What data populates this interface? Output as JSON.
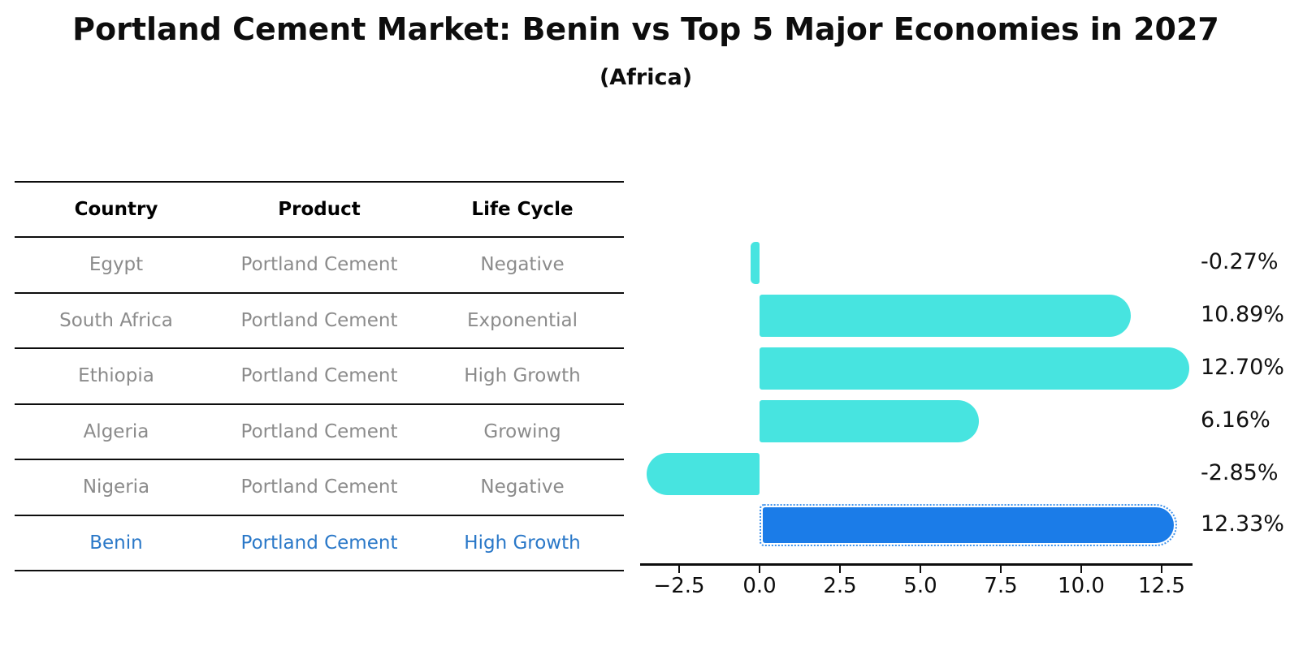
{
  "title": "Portland Cement Market: Benin vs Top 5 Major Economies in 2027",
  "subtitle": "(Africa)",
  "table": {
    "headers": [
      "Country",
      "Product",
      "Life Cycle"
    ],
    "rows": [
      {
        "country": "Egypt",
        "product": "Portland Cement",
        "life_cycle": "Negative",
        "highlight": false
      },
      {
        "country": "South Africa",
        "product": "Portland Cement",
        "life_cycle": "Exponential",
        "highlight": false
      },
      {
        "country": "Ethiopia",
        "product": "Portland Cement",
        "life_cycle": "High Growth",
        "highlight": false
      },
      {
        "country": "Algeria",
        "product": "Portland Cement",
        "life_cycle": "Growing",
        "highlight": false
      },
      {
        "country": "Nigeria",
        "product": "Portland Cement",
        "life_cycle": "Negative",
        "highlight": false
      },
      {
        "country": "Benin",
        "product": "Portland Cement",
        "life_cycle": "High Growth",
        "highlight": true
      }
    ]
  },
  "chart_data": {
    "type": "bar",
    "orientation": "horizontal",
    "title": "Portland Cement Market: Benin vs Top 5 Major Economies in 2027",
    "subtitle": "(Africa)",
    "categories": [
      "Egypt",
      "South Africa",
      "Ethiopia",
      "Algeria",
      "Nigeria",
      "Benin"
    ],
    "values": [
      -0.27,
      10.89,
      12.7,
      6.16,
      -2.85,
      12.33
    ],
    "value_labels": [
      "-0.27%",
      "10.89%",
      "12.70%",
      "6.16%",
      "-2.85%",
      "12.33%"
    ],
    "unit": "%",
    "highlight_category": "Benin",
    "x_ticks": [
      -2.5,
      0.0,
      2.5,
      5.0,
      7.5,
      10.0,
      12.5
    ],
    "x_tick_labels": [
      "−2.5",
      "0.0",
      "2.5",
      "5.0",
      "7.5",
      "10.0",
      "12.5"
    ],
    "xlim": [
      -3.65,
      13.45
    ],
    "grid": false,
    "legend": false,
    "colors": {
      "bar_default": "#47e4e0",
      "bar_highlight": "#1b7ce8",
      "highlight_border": "#3e92ec",
      "highlight_text": "#2a78c8",
      "table_text": "#8b8b8b",
      "header_text": "#000000",
      "axis_text": "#0d0d0d",
      "value_label_text": "#111111"
    }
  }
}
